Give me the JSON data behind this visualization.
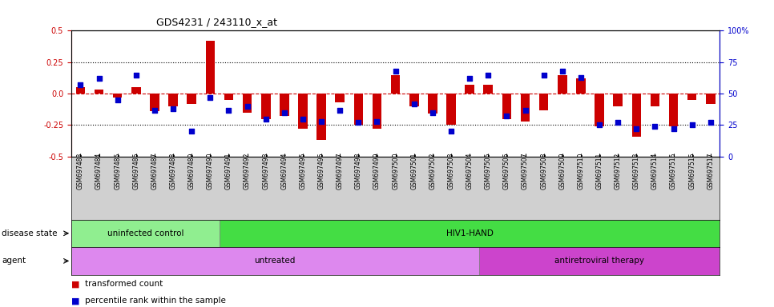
{
  "title": "GDS4231 / 243110_x_at",
  "samples": [
    "GSM697483",
    "GSM697484",
    "GSM697485",
    "GSM697486",
    "GSM697487",
    "GSM697488",
    "GSM697489",
    "GSM697490",
    "GSM697491",
    "GSM697492",
    "GSM697493",
    "GSM697494",
    "GSM697495",
    "GSM697496",
    "GSM697497",
    "GSM697498",
    "GSM697499",
    "GSM697500",
    "GSM697501",
    "GSM697502",
    "GSM697503",
    "GSM697504",
    "GSM697505",
    "GSM697506",
    "GSM697507",
    "GSM697508",
    "GSM697509",
    "GSM697510",
    "GSM697511",
    "GSM697512",
    "GSM697513",
    "GSM697514",
    "GSM697515",
    "GSM697516",
    "GSM697517"
  ],
  "transformed_count": [
    0.05,
    0.03,
    -0.03,
    0.05,
    -0.14,
    -0.1,
    -0.08,
    0.42,
    -0.05,
    -0.15,
    -0.2,
    -0.18,
    -0.28,
    -0.37,
    -0.07,
    -0.25,
    -0.28,
    0.15,
    -0.1,
    -0.16,
    -0.25,
    0.07,
    0.07,
    -0.2,
    -0.22,
    -0.13,
    0.15,
    0.12,
    -0.26,
    -0.1,
    -0.34,
    -0.1,
    -0.26,
    -0.05,
    -0.08
  ],
  "percentile_rank": [
    57,
    62,
    45,
    65,
    37,
    38,
    20,
    47,
    37,
    40,
    30,
    35,
    30,
    28,
    37,
    27,
    28,
    68,
    42,
    35,
    20,
    62,
    65,
    32,
    37,
    65,
    68,
    63,
    25,
    27,
    22,
    24,
    22,
    25,
    27
  ],
  "bar_color": "#cc0000",
  "dot_color": "#0000cc",
  "zero_line_color": "#cc0000",
  "ylim_left": [
    -0.5,
    0.5
  ],
  "ylim_right": [
    0,
    100
  ],
  "yticks_left": [
    -0.5,
    -0.25,
    0.0,
    0.25,
    0.5
  ],
  "yticks_right": [
    0,
    25,
    50,
    75,
    100
  ],
  "ytick_labels_right": [
    "0",
    "25",
    "50",
    "75",
    "100%"
  ],
  "disease_state_groups": [
    {
      "label": "uninfected control",
      "start": 0,
      "end": 8,
      "color": "#90ee90"
    },
    {
      "label": "HIV1-HAND",
      "start": 8,
      "end": 35,
      "color": "#44dd44"
    }
  ],
  "agent_groups": [
    {
      "label": "untreated",
      "start": 0,
      "end": 22,
      "color": "#dd88ee"
    },
    {
      "label": "antiretroviral therapy",
      "start": 22,
      "end": 35,
      "color": "#cc44cc"
    }
  ],
  "legend_items": [
    {
      "label": "transformed count",
      "color": "#cc0000"
    },
    {
      "label": "percentile rank within the sample",
      "color": "#0000cc"
    }
  ],
  "disease_state_label": "disease state",
  "agent_label": "agent",
  "background_color": "#ffffff",
  "bar_width": 0.5,
  "label_area_bgcolor": "#d0d0d0"
}
